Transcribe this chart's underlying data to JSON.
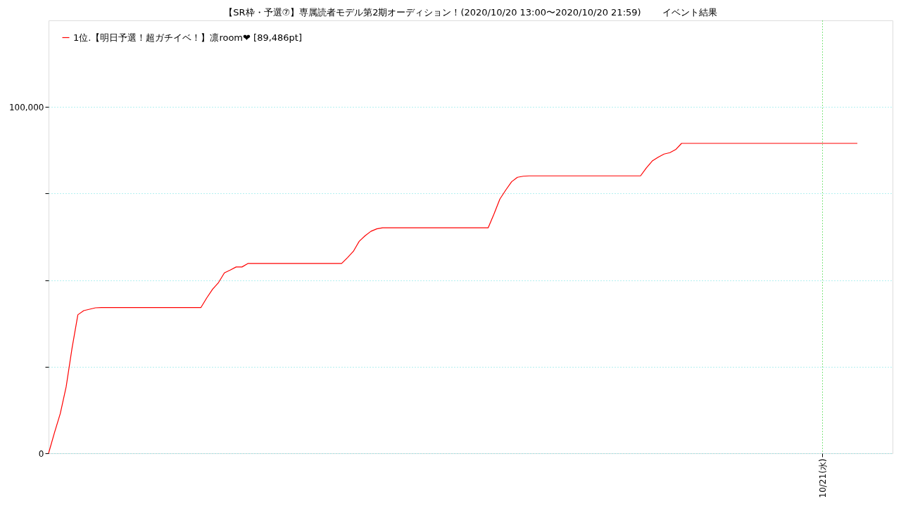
{
  "chart_data": {
    "type": "line",
    "title": "【SR枠・予選⑦】専属読者モデル第2期オーディション！(2020/10/20 13:00〜2020/10/20 21:59)　　 イベント結果",
    "categories": [
      null,
      null,
      null,
      null,
      null,
      null,
      null,
      null,
      null,
      null,
      null,
      null,
      null,
      null,
      null,
      null,
      null,
      null,
      null,
      null,
      null,
      null,
      null,
      null,
      null,
      null,
      null,
      null,
      null,
      null,
      null,
      null,
      null,
      null,
      null,
      null,
      null,
      null,
      null,
      null,
      null,
      null,
      null,
      null,
      null,
      null,
      null,
      null,
      null,
      null,
      null,
      null,
      null,
      null,
      null,
      null,
      null,
      null,
      null,
      null,
      null,
      null,
      null,
      null,
      null,
      null,
      null,
      null,
      null,
      null,
      null,
      null,
      null,
      null,
      null,
      null,
      null,
      null,
      null,
      null,
      null,
      null,
      null,
      null,
      null,
      null,
      null,
      null,
      null,
      null,
      null,
      null,
      null,
      null,
      null,
      null,
      null,
      null,
      null,
      null,
      null,
      null,
      null,
      null,
      null,
      null,
      null,
      null,
      null,
      null,
      null,
      null,
      null,
      null,
      null,
      null,
      null,
      null,
      null,
      null,
      null,
      null,
      null,
      null,
      null,
      null,
      null,
      null,
      null,
      null,
      null,
      null,
      "10/21(水)",
      null,
      null,
      null,
      null,
      null,
      null,
      null,
      null,
      null,
      null,
      null,
      null
    ],
    "series": [
      {
        "name": "1位.【明日予選！超ガチイベ！】凛room❤ [89,486pt]",
        "color": "#ff0000",
        "values": [
          0,
          5900,
          11500,
          19200,
          30300,
          40000,
          41200,
          41600,
          42000,
          42100,
          42100,
          42100,
          42100,
          42100,
          42100,
          42100,
          42100,
          42100,
          42100,
          42100,
          42100,
          42100,
          42100,
          42100,
          42100,
          42100,
          42100,
          44900,
          47400,
          49300,
          52100,
          52900,
          53800,
          53800,
          54800,
          54800,
          54800,
          54800,
          54800,
          54800,
          54800,
          54800,
          54800,
          54800,
          54800,
          54800,
          54800,
          54800,
          54800,
          54800,
          54800,
          56500,
          58300,
          61200,
          62800,
          64100,
          64800,
          65100,
          65100,
          65100,
          65100,
          65100,
          65100,
          65100,
          65100,
          65100,
          65100,
          65100,
          65100,
          65100,
          65100,
          65100,
          65100,
          65100,
          65100,
          65100,
          69100,
          73400,
          76000,
          78400,
          79700,
          80000,
          80100,
          80100,
          80100,
          80100,
          80100,
          80100,
          80100,
          80100,
          80100,
          80100,
          80100,
          80100,
          80100,
          80100,
          80100,
          80100,
          80100,
          80100,
          80100,
          80100,
          82400,
          84400,
          85500,
          86400,
          86800,
          87700,
          89486,
          89486,
          89486,
          89486,
          89486,
          89486,
          89486,
          89486,
          89486,
          89486,
          89486,
          89486,
          89486,
          89486,
          89486,
          89486,
          89486,
          89486,
          89486,
          89486,
          89486,
          89486,
          89486,
          89486,
          89486,
          89486,
          89486,
          89486,
          89486,
          89486,
          89486,
          null,
          null,
          null,
          null,
          null,
          null
        ]
      }
    ],
    "ylim": [
      0,
      125000
    ],
    "yticks": [
      {
        "value": 0,
        "label": "0"
      },
      {
        "value": 25000,
        "label": null
      },
      {
        "value": 50000,
        "label": null
      },
      {
        "value": 75000,
        "label": null
      },
      {
        "value": 100000,
        "label": "100,000"
      }
    ],
    "grid": true,
    "legend": "top left",
    "marker": "none",
    "line_style": "solid"
  }
}
